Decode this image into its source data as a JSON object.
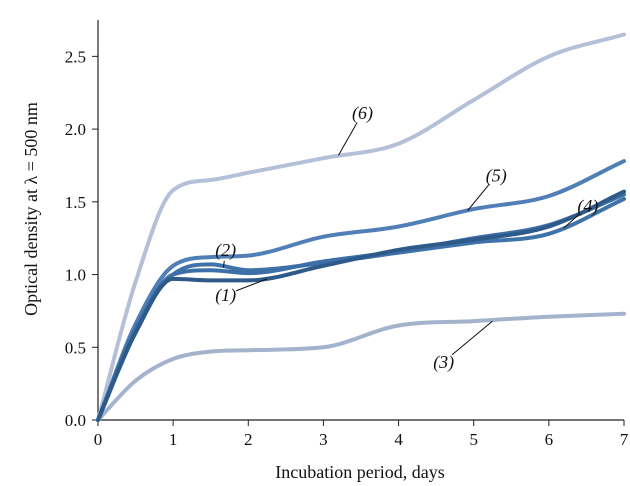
{
  "chart_data": {
    "type": "line",
    "title": "",
    "xlabel": "Incubation period, days",
    "ylabel": "Optical density at λ = 500 nm",
    "xlim": [
      0,
      7
    ],
    "ylim": [
      0,
      2.75
    ],
    "x_ticks": [
      0,
      1,
      2,
      3,
      4,
      5,
      6,
      7
    ],
    "x_tick_labels": [
      "0",
      "1",
      "2",
      "3",
      "4",
      "5",
      "6",
      "7"
    ],
    "y_ticks": [
      0,
      0.5,
      1.0,
      1.5,
      2.0,
      2.5
    ],
    "y_tick_labels": [
      "0.0",
      "0.5",
      "1.0",
      "1.5",
      "2.0",
      "2.5"
    ],
    "grid": false,
    "legend": "none",
    "series": [
      {
        "name": "(1)",
        "color": "#2e5a8a",
        "x": [
          0,
          0.5,
          1,
          1.5,
          2,
          3,
          4,
          5,
          6,
          7
        ],
        "y": [
          0,
          0.6,
          0.97,
          0.96,
          0.96,
          1.06,
          1.17,
          1.24,
          1.33,
          1.57
        ]
      },
      {
        "name": "(2)",
        "color": "#3f72a8",
        "x": [
          0,
          0.5,
          1,
          1.5,
          2,
          3,
          4,
          5,
          6,
          7
        ],
        "y": [
          0,
          0.63,
          1.0,
          1.07,
          1.03,
          1.08,
          1.15,
          1.22,
          1.28,
          1.52
        ]
      },
      {
        "name": "(3)",
        "color": "#a3b3cc",
        "x": [
          0,
          0.5,
          1,
          1.5,
          2,
          3,
          4,
          5,
          6,
          7
        ],
        "y": [
          0,
          0.27,
          0.42,
          0.47,
          0.48,
          0.5,
          0.65,
          0.68,
          0.71,
          0.73
        ]
      },
      {
        "name": "(4)",
        "color": "#3c6ea8",
        "x": [
          0,
          0.5,
          1,
          1.5,
          2,
          3,
          4,
          5,
          6,
          7
        ],
        "y": [
          0,
          0.62,
          1.0,
          1.03,
          1.01,
          1.09,
          1.16,
          1.25,
          1.34,
          1.55
        ]
      },
      {
        "name": "(5)",
        "color": "#4f7fb6",
        "x": [
          0,
          0.5,
          1,
          1.5,
          2,
          3,
          4,
          5,
          6,
          7
        ],
        "y": [
          0,
          0.66,
          1.06,
          1.12,
          1.13,
          1.26,
          1.33,
          1.45,
          1.54,
          1.78
        ]
      },
      {
        "name": "(6)",
        "color": "#b3c0d8",
        "x": [
          0,
          0.5,
          1,
          1.5,
          2,
          3,
          4,
          5,
          6,
          7
        ],
        "y": [
          0,
          0.95,
          1.58,
          1.65,
          1.7,
          1.8,
          1.9,
          2.2,
          2.5,
          2.65
        ]
      }
    ],
    "annotations": [
      {
        "text": "(1)",
        "series": "(1)",
        "label_x": 1.7,
        "label_y": 0.86,
        "point_x": 2.25,
        "point_y": 0.97
      },
      {
        "text": "(2)",
        "series": "(2)",
        "label_x": 1.7,
        "label_y": 1.17,
        "point_x": 1.67,
        "point_y": 1.05
      },
      {
        "text": "(3)",
        "series": "(3)",
        "label_x": 4.6,
        "label_y": 0.4,
        "point_x": 5.25,
        "point_y": 0.68
      },
      {
        "text": "(4)",
        "series": "(4)",
        "label_x": 6.52,
        "label_y": 1.47,
        "point_x": 6.2,
        "point_y": 1.32
      },
      {
        "text": "(5)",
        "series": "(5)",
        "label_x": 5.3,
        "label_y": 1.68,
        "point_x": 4.92,
        "point_y": 1.44
      },
      {
        "text": "(6)",
        "series": "(6)",
        "label_x": 3.52,
        "label_y": 2.11,
        "point_x": 3.2,
        "point_y": 1.82
      }
    ]
  }
}
